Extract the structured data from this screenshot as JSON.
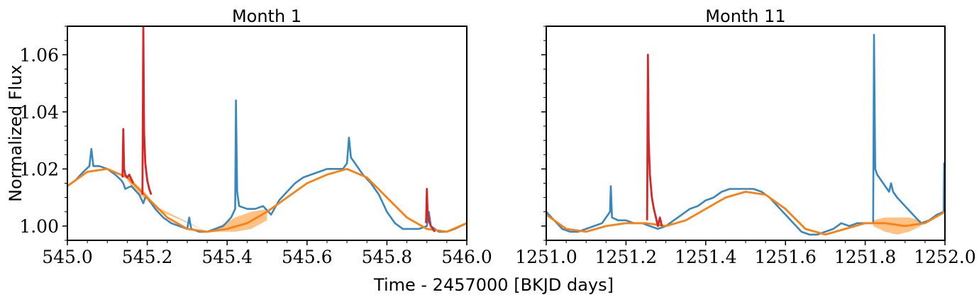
{
  "figure": {
    "xlabel": "Time - 2457000 [BKJD days]",
    "ylabel": "Normalized Flux"
  },
  "colors": {
    "data": "#3787c0",
    "model": "#ff7f0e",
    "band": "#ffbb78",
    "flare": "#d62728"
  },
  "chart_data": [
    {
      "type": "line",
      "title": "Month 1",
      "xlim": [
        545.0,
        546.0
      ],
      "ylim": [
        0.995,
        1.07
      ],
      "xticks": [
        545.0,
        545.2,
        545.4,
        545.6,
        545.8,
        546.0
      ],
      "xtick_labels": [
        "545.0",
        "545.2",
        "545.4",
        "545.6",
        "545.8",
        "546.0"
      ],
      "yticks": [
        1.0,
        1.02,
        1.04,
        1.06
      ],
      "ytick_labels": [
        "1.00",
        "1.02",
        "1.04",
        "1.06"
      ],
      "series": [
        {
          "role": "flux",
          "x": [
            545.0,
            545.02,
            545.04,
            545.055,
            545.06,
            545.065,
            545.08,
            545.1,
            545.12,
            545.135,
            545.14,
            545.145,
            545.16,
            545.18,
            545.19,
            545.195,
            545.2,
            545.22,
            545.24,
            545.26,
            545.28,
            545.3,
            545.305,
            545.31,
            545.33,
            545.35,
            545.37,
            545.39,
            545.41,
            545.42,
            545.422,
            545.425,
            545.43,
            545.45,
            545.47,
            545.49,
            545.51,
            545.53,
            545.55,
            545.57,
            545.59,
            545.61,
            545.63,
            545.65,
            545.67,
            545.69,
            545.7,
            545.705,
            545.71,
            545.72,
            545.74,
            545.76,
            545.78,
            545.8,
            545.82,
            545.84,
            545.86,
            545.88,
            545.9,
            545.905,
            545.91,
            545.93,
            545.95,
            545.97,
            546.0
          ],
          "y": [
            1.014,
            1.016,
            1.019,
            1.021,
            1.027,
            1.021,
            1.021,
            1.02,
            1.018,
            1.016,
            1.015,
            1.013,
            1.014,
            1.011,
            1.008,
            1.01,
            1.01,
            1.006,
            1.003,
            1.001,
            1.0,
            0.999,
            1.003,
            0.999,
            0.998,
            0.998,
            0.999,
            1.0,
            1.003,
            1.006,
            1.044,
            1.012,
            1.007,
            1.006,
            1.006,
            1.007,
            1.004,
            1.009,
            1.012,
            1.015,
            1.017,
            1.018,
            1.019,
            1.02,
            1.02,
            1.02,
            1.022,
            1.031,
            1.024,
            1.022,
            1.018,
            1.015,
            1.011,
            1.005,
            1.001,
            0.999,
            0.999,
            0.999,
            1.0,
            1.005,
            1.0,
            0.998,
            0.998,
            0.999,
            1.001
          ]
        },
        {
          "role": "model",
          "x": [
            545.0,
            545.05,
            545.1,
            545.15,
            545.2,
            545.25,
            545.3,
            545.35,
            545.4,
            545.45,
            545.5,
            545.55,
            545.6,
            545.65,
            545.7,
            545.75,
            545.8,
            545.85,
            545.9,
            545.95,
            546.0
          ],
          "y": [
            1.014,
            1.019,
            1.02,
            1.017,
            1.01,
            1.003,
            0.999,
            0.998,
            0.999,
            1.001,
            1.005,
            1.01,
            1.015,
            1.018,
            1.02,
            1.017,
            1.01,
            1.003,
            0.999,
            0.998,
            1.001
          ],
          "band_x": [
            545.15,
            545.17,
            545.2,
            545.22,
            545.35,
            545.38,
            545.42,
            545.46,
            545.5
          ],
          "band_lo": [
            1.016,
            1.012,
            1.009,
            1.006,
            0.998,
            0.998,
            0.998,
            0.999,
            1.002
          ],
          "band_hi": [
            1.017,
            1.015,
            1.011,
            1.007,
            0.998,
            1.0,
            1.003,
            1.005,
            1.006
          ]
        },
        {
          "role": "flare",
          "x": [
            545.138,
            545.14,
            545.142,
            545.145,
            545.15,
            545.155,
            545.158,
            545.165
          ],
          "y": [
            1.017,
            1.034,
            1.02,
            1.018,
            1.017,
            1.018,
            1.017,
            1.015
          ]
        },
        {
          "role": "flare",
          "x": [
            545.188,
            545.19,
            545.192,
            545.195,
            545.2,
            545.205,
            545.21
          ],
          "y": [
            1.011,
            1.07,
            1.033,
            1.022,
            1.016,
            1.013,
            1.011
          ]
        },
        {
          "role": "flare",
          "x": [
            545.898,
            545.9,
            545.902,
            545.905,
            545.91,
            545.92
          ],
          "y": [
            1.001,
            1.013,
            1.005,
            1.002,
            1.0,
            0.998
          ]
        }
      ]
    },
    {
      "type": "line",
      "title": "Month 11",
      "xlim": [
        1251.0,
        1252.0
      ],
      "ylim": [
        0.995,
        1.07
      ],
      "xticks": [
        1251.0,
        1251.2,
        1251.4,
        1251.6,
        1251.8,
        1252.0
      ],
      "xtick_labels": [
        "1251.0",
        "1251.2",
        "1251.4",
        "1251.6",
        "1251.8",
        "1252.0"
      ],
      "yticks": [
        1.0,
        1.02,
        1.04,
        1.06
      ],
      "ytick_labels": [],
      "series": [
        {
          "role": "flux",
          "x": [
            1251.0,
            1251.02,
            1251.04,
            1251.06,
            1251.08,
            1251.1,
            1251.12,
            1251.14,
            1251.16,
            1251.162,
            1251.165,
            1251.18,
            1251.2,
            1251.22,
            1251.24,
            1251.26,
            1251.28,
            1251.3,
            1251.32,
            1251.34,
            1251.36,
            1251.38,
            1251.4,
            1251.42,
            1251.44,
            1251.46,
            1251.48,
            1251.5,
            1251.52,
            1251.54,
            1251.56,
            1251.58,
            1251.6,
            1251.62,
            1251.64,
            1251.66,
            1251.68,
            1251.7,
            1251.72,
            1251.74,
            1251.76,
            1251.78,
            1251.8,
            1251.82,
            1251.822,
            1251.825,
            1251.83,
            1251.84,
            1251.85,
            1251.86,
            1251.865,
            1251.87,
            1251.88,
            1251.9,
            1251.92,
            1251.94,
            1251.96,
            1251.98,
            1251.997,
            1251.998,
            1252.0
          ],
          "y": [
            1.005,
            1.002,
            0.999,
            0.998,
            0.998,
            0.999,
            1.0,
            1.001,
            1.005,
            1.014,
            1.003,
            1.002,
            1.002,
            1.001,
            1.001,
            1.0,
            0.999,
            1.0,
            1.002,
            1.004,
            1.006,
            1.007,
            1.009,
            1.01,
            1.012,
            1.013,
            1.013,
            1.013,
            1.013,
            1.012,
            1.01,
            1.007,
            1.004,
            1.001,
            0.998,
            0.997,
            0.997,
            0.998,
            0.999,
            1.001,
            1.0,
            1.001,
            1.001,
            1.001,
            1.067,
            1.02,
            1.018,
            1.016,
            1.014,
            1.012,
            1.015,
            1.012,
            1.01,
            1.007,
            1.004,
            1.001,
            1.002,
            1.004,
            1.005,
            1.022,
            1.006
          ]
        },
        {
          "role": "model",
          "x": [
            1251.0,
            1251.05,
            1251.1,
            1251.15,
            1251.2,
            1251.25,
            1251.3,
            1251.35,
            1251.4,
            1251.45,
            1251.5,
            1251.55,
            1251.6,
            1251.65,
            1251.7,
            1251.75,
            1251.8,
            1251.85,
            1251.9,
            1251.95,
            1252.0
          ],
          "y": [
            1.004,
            0.999,
            0.998,
            1.0,
            1.001,
            1.001,
            1.0,
            1.002,
            1.006,
            1.01,
            1.012,
            1.011,
            1.006,
            0.999,
            0.997,
            0.999,
            1.001,
            1.001,
            1.0,
            1.001,
            1.005
          ],
          "band_x": [
            1251.82,
            1251.85,
            1251.88,
            1251.91,
            1251.94
          ],
          "band_lo": [
            1.0,
            0.998,
            0.997,
            0.998,
            1.0
          ],
          "band_hi": [
            1.002,
            1.003,
            1.003,
            1.003,
            1.002
          ]
        },
        {
          "role": "flare",
          "x": [
            1251.253,
            1251.255,
            1251.257,
            1251.26,
            1251.265,
            1251.27,
            1251.275,
            1251.28,
            1251.285,
            1251.29
          ],
          "y": [
            1.002,
            1.06,
            1.03,
            1.018,
            1.01,
            1.006,
            1.003,
            1.0,
            1.003,
            1.0
          ]
        }
      ]
    }
  ]
}
